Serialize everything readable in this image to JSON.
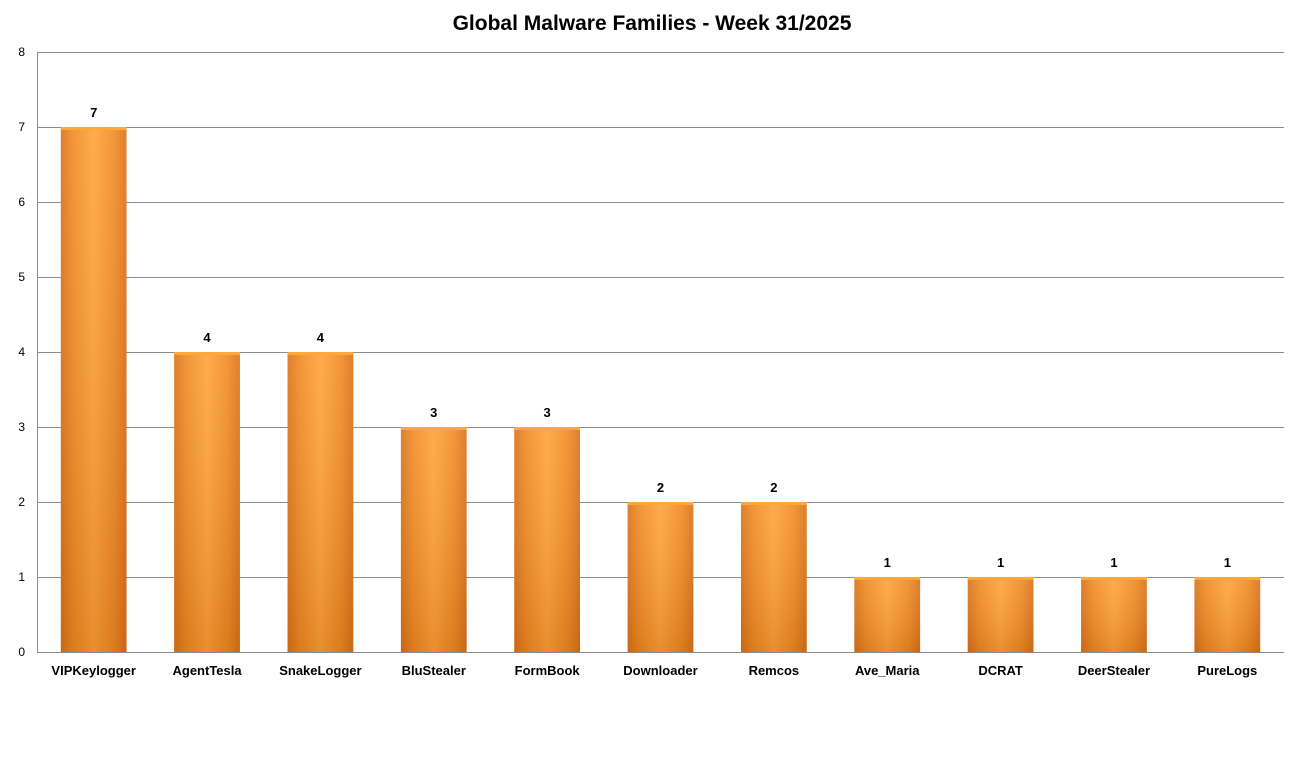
{
  "chart_data": {
    "type": "bar",
    "title": "Global Malware Families - Week 31/2025",
    "xlabel": "",
    "ylabel": "",
    "categories": [
      "VIPKeylogger",
      "AgentTesla",
      "SnakeLogger",
      "BluStealer",
      "FormBook",
      "Downloader",
      "Remcos",
      "Ave_Maria",
      "DCRAT",
      "DeerStealer",
      "PureLogs"
    ],
    "values": [
      7,
      4,
      4,
      3,
      3,
      2,
      2,
      1,
      1,
      1,
      1
    ],
    "ylim": [
      0,
      8
    ],
    "yticks": [
      "0",
      "1",
      "2",
      "3",
      "4",
      "5",
      "6",
      "7",
      "8"
    ],
    "grid": true,
    "data_labels": true,
    "legend": "none",
    "bar_color": "#F7931E",
    "bar_color_light": "#FFA83A",
    "bar_color_dark": "#D9711A",
    "grid_color": "#8C8C8C"
  }
}
